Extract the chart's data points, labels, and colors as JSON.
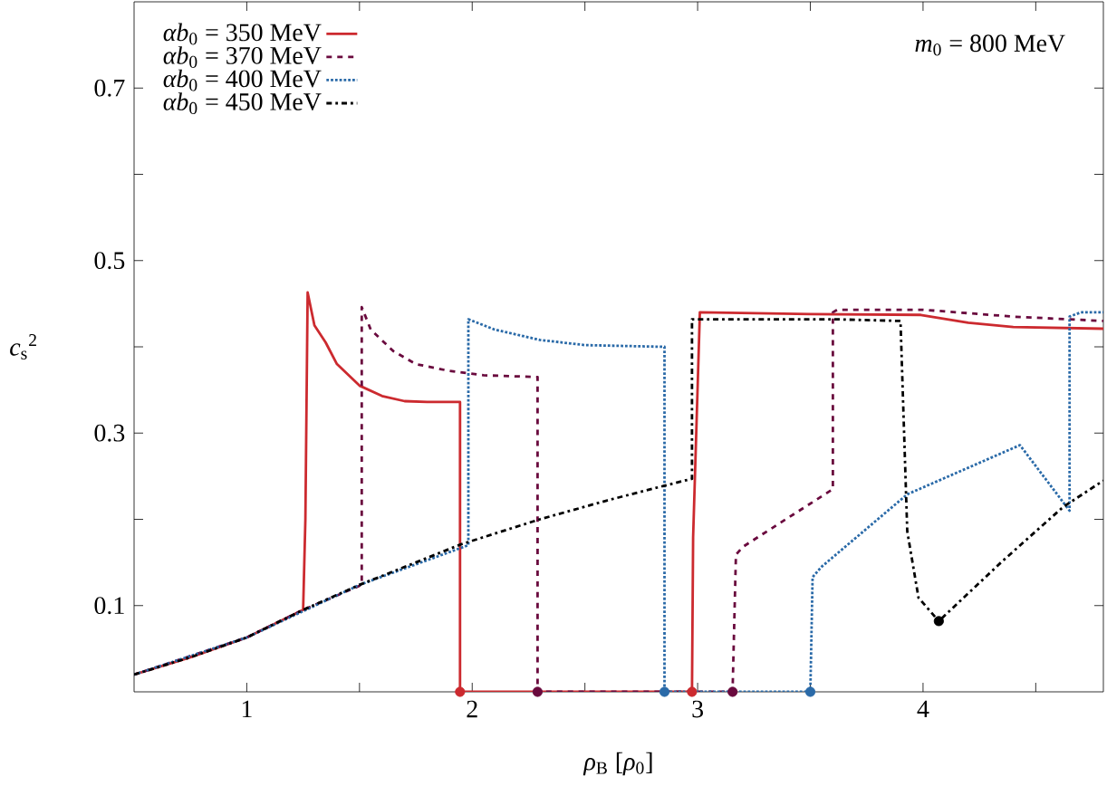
{
  "chart_data": {
    "type": "line",
    "xlabel": "*ρ*$_{B}$ [*ρ*$_{0}$]",
    "ylabel": "*c*$_{s}$$^{2}$",
    "annotations": [
      "*m*$_{0}$ = 800 MeV"
    ],
    "xlim": [
      0.5,
      4.8
    ],
    "ylim": [
      0,
      0.8
    ],
    "xticks": [
      1,
      {
        "value": 1.5,
        "label": null
      },
      2,
      {
        "value": 2.5,
        "label": null
      },
      3,
      {
        "value": 3.5,
        "label": null
      },
      4,
      {
        "value": 4.5,
        "label": null
      }
    ],
    "yticks": [
      0.1,
      {
        "value": 0.2,
        "label": null
      },
      0.3,
      {
        "value": 0.4,
        "label": null
      },
      0.5,
      {
        "value": 0.6,
        "label": null
      },
      0.7
    ],
    "legend": "top left",
    "grid": false,
    "series": [
      {
        "name": "*αb*$_{0}$ = 350 MeV",
        "color": "#cc2a2f",
        "line_style": "solid",
        "x": [
          0.5,
          0.75,
          1,
          1.25,
          1.26,
          1.27,
          1.3,
          1.35,
          1.4,
          1.5,
          1.6,
          1.7,
          1.8,
          1.946,
          1.946,
          2.975,
          2.98,
          3.01,
          3.5,
          3.99,
          4.2,
          4.4,
          4.8
        ],
        "values": [
          0.02,
          0.04,
          0.063,
          0.095,
          0.2,
          0.463,
          0.425,
          0.405,
          0.38,
          0.355,
          0.343,
          0.337,
          0.336,
          0.336,
          0,
          0,
          0.179,
          0.44,
          0.438,
          0.437,
          0.428,
          0.423,
          0.421
        ]
      },
      {
        "name": "*αb*$_{0}$ = 370 MeV",
        "color": "#6a0a3e",
        "line_style": "dashed",
        "x": [
          0.5,
          1,
          1.25,
          1.51,
          1.51,
          1.55,
          1.65,
          1.75,
          1.9,
          2.05,
          2.29,
          2.29,
          3.155,
          3.17,
          3.2,
          3.6,
          3.6,
          3.62,
          4.0,
          4.4,
          4.8
        ],
        "values": [
          0.02,
          0.063,
          0.095,
          0.124,
          0.446,
          0.42,
          0.395,
          0.38,
          0.372,
          0.367,
          0.365,
          0,
          0,
          0.159,
          0.168,
          0.235,
          0.44,
          0.443,
          0.443,
          0.435,
          0.43
        ]
      },
      {
        "name": "*αb*$_{0}$ = 400 MeV",
        "color": "#2a6aa8",
        "line_style": "dotted",
        "x": [
          0.5,
          1,
          1.5,
          1.983,
          1.983,
          2.1,
          2.3,
          2.5,
          2.853,
          2.853,
          3.5,
          3.51,
          3.55,
          3.93,
          4.43,
          4.65,
          4.65,
          4.7,
          4.8
        ],
        "values": [
          0.02,
          0.063,
          0.124,
          0.17,
          0.432,
          0.42,
          0.408,
          0.402,
          0.4,
          0,
          0,
          0.133,
          0.145,
          0.229,
          0.286,
          0.21,
          0.435,
          0.44,
          0.44
        ]
      },
      {
        "name": "*αb*$_{0}$ = 450 MeV",
        "color": "#000000",
        "line_style": "dashdot",
        "x": [
          0.5,
          0.75,
          1,
          1.25,
          1.5,
          1.75,
          1.95,
          2.3,
          2.6,
          2.853,
          2.975,
          2.975,
          3.3,
          3.6,
          3.9,
          3.93,
          3.98,
          4.07,
          4.35,
          4.62,
          4.8
        ],
        "values": [
          0.02,
          0.04,
          0.063,
          0.095,
          0.124,
          0.15,
          0.171,
          0.2,
          0.222,
          0.239,
          0.247,
          0.432,
          0.432,
          0.432,
          0.43,
          0.186,
          0.109,
          0.082,
          0.151,
          0.214,
          0.245
        ]
      },
      {
        "type": "scatter",
        "color": "#cc2a2f",
        "x": [
          1.946,
          2.975
        ],
        "values": [
          0,
          0
        ]
      },
      {
        "type": "scatter",
        "color": "#6a0a3e",
        "x": [
          2.29,
          3.155
        ],
        "values": [
          0,
          0
        ]
      },
      {
        "type": "scatter",
        "color": "#2a6aa8",
        "x": [
          2.853,
          3.5
        ],
        "values": [
          0,
          0
        ]
      },
      {
        "type": "scatter",
        "color": "#000000",
        "x": [
          4.07
        ],
        "values": [
          0.082
        ]
      }
    ]
  }
}
